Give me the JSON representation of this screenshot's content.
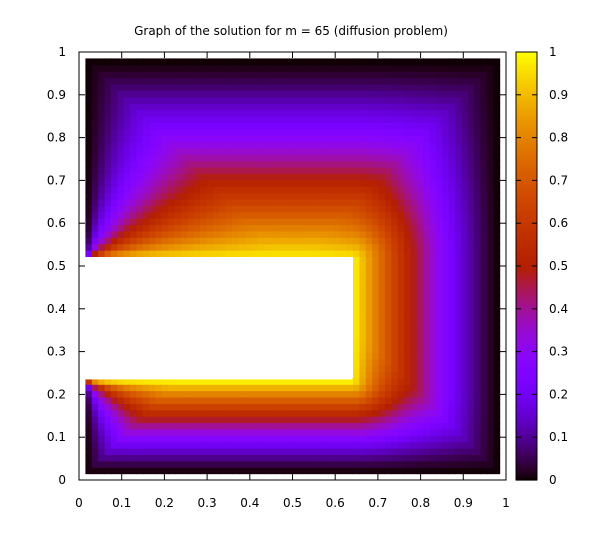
{
  "chart_data": {
    "type": "heatmap",
    "title": "Graph of the solution for m = 65 (diffusion problem)",
    "xlabel": "",
    "ylabel": "",
    "xlim": [
      0,
      1
    ],
    "ylim": [
      0,
      1
    ],
    "x_ticks": [
      "0",
      "0.1",
      "0.2",
      "0.3",
      "0.4",
      "0.5",
      "0.6",
      "0.7",
      "0.8",
      "0.9",
      "1"
    ],
    "y_ticks": [
      "0",
      "0.1",
      "0.2",
      "0.3",
      "0.4",
      "0.5",
      "0.6",
      "0.7",
      "0.8",
      "0.9",
      "1"
    ],
    "colorbar": {
      "range": [
        0,
        1
      ],
      "ticks": [
        "0",
        "0.1",
        "0.2",
        "0.3",
        "0.4",
        "0.5",
        "0.6",
        "0.7",
        "0.8",
        "0.9",
        "1"
      ],
      "palette": "black-blue-violet-red-orange-yellow"
    },
    "grid_size": 65,
    "domain_region": [
      0.015,
      0.985
    ],
    "hole": {
      "x": [
        0,
        0.64
      ],
      "y": [
        0.235,
        0.515
      ]
    },
    "boundary_condition": {
      "hole_edge": 1,
      "outer_edge": 0
    },
    "grid": false,
    "legend": "colorbar-right"
  }
}
